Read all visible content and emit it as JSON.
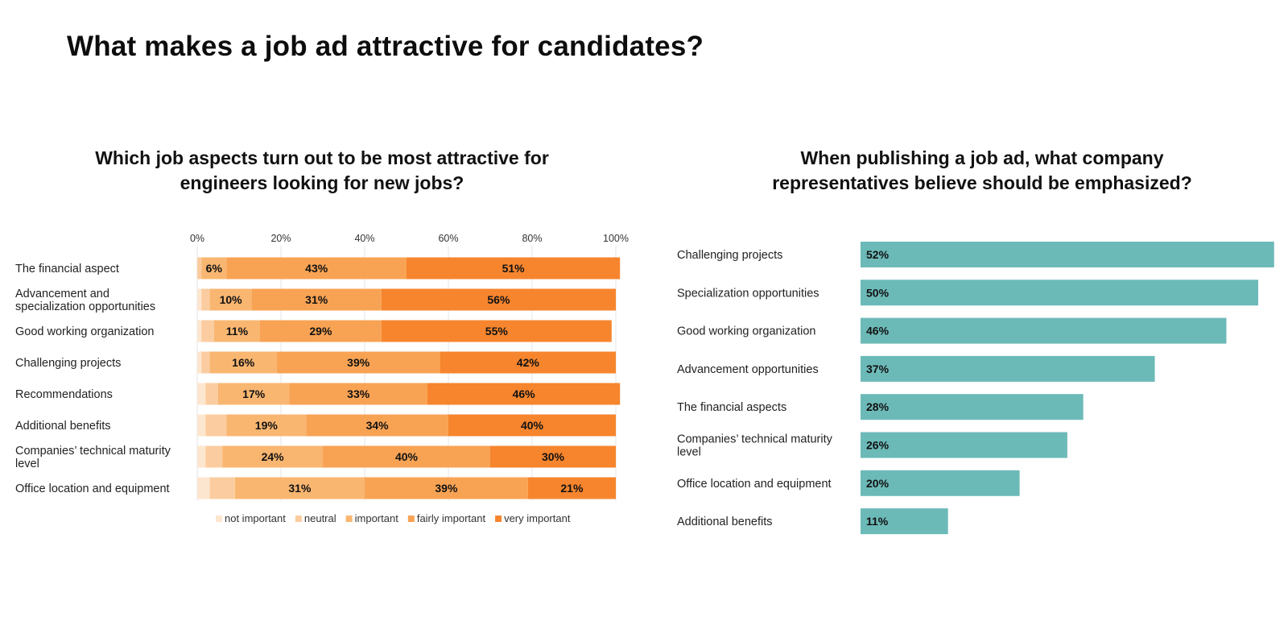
{
  "page_title": "What makes a job ad attractive for candidates?",
  "chart_data": [
    {
      "type": "bar",
      "orientation": "horizontal",
      "stacked": true,
      "title_lines": [
        "Which job aspects turn out to be most attractive for",
        "engineers looking for new jobs?"
      ],
      "x_ticks": [
        "0%",
        "20%",
        "40%",
        "60%",
        "80%",
        "100%"
      ],
      "xlim": [
        0,
        100
      ],
      "grid": true,
      "legend_position": "bottom",
      "categories": [
        [
          "The financial aspect"
        ],
        [
          "Advancement and",
          "specialization opportunities"
        ],
        [
          "Good working organization"
        ],
        [
          "Challenging projects"
        ],
        [
          "Recommendations"
        ],
        [
          "Additional benefits"
        ],
        [
          "Companies’ technical maturity",
          "level"
        ],
        [
          "Office location and equipment"
        ]
      ],
      "series": [
        {
          "name": "not important",
          "color": "#fde6cf",
          "values": [
            0,
            1,
            1,
            1,
            2,
            2,
            2,
            3
          ]
        },
        {
          "name": "neutral",
          "color": "#fbcc9f",
          "values": [
            1,
            2,
            3,
            2,
            3,
            5,
            4,
            6
          ]
        },
        {
          "name": "important",
          "color": "#f9b671",
          "values": [
            6,
            10,
            11,
            16,
            17,
            19,
            24,
            31
          ]
        },
        {
          "name": "fairly important",
          "color": "#f8a354",
          "values": [
            43,
            31,
            29,
            39,
            33,
            34,
            40,
            39
          ]
        },
        {
          "name": "very important",
          "color": "#f6852e",
          "values": [
            51,
            56,
            55,
            42,
            46,
            40,
            30,
            21
          ]
        }
      ],
      "labeled_series": [
        "important",
        "fairly important",
        "very important"
      ]
    },
    {
      "type": "bar",
      "orientation": "horizontal",
      "title_lines": [
        "When publishing a job ad, what company",
        "representatives believe should be emphasized?"
      ],
      "color": "#6cbab8",
      "categories": [
        [
          "Challenging projects"
        ],
        [
          "Specialization opportunities"
        ],
        [
          "Good working organization"
        ],
        [
          "Advancement opportunities"
        ],
        [
          "The financial aspects"
        ],
        [
          "Companies’ technical maturity",
          "level"
        ],
        [
          "Office location and equipment"
        ],
        [
          "Additional benefits"
        ]
      ],
      "values": [
        52,
        50,
        46,
        37,
        28,
        26,
        20,
        11
      ],
      "value_labels": [
        "52%",
        "50%",
        "46%",
        "37%",
        "28%",
        "26%",
        "20%",
        "11%"
      ]
    }
  ]
}
